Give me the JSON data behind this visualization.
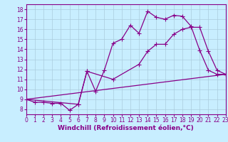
{
  "xlabel": "Windchill (Refroidissement éolien,°C)",
  "ylabel": "",
  "bg_color": "#c8eeff",
  "line_color": "#880088",
  "grid_color": "#aaccdd",
  "xlim": [
    0,
    23
  ],
  "ylim": [
    7.5,
    18.5
  ],
  "xticks": [
    0,
    1,
    2,
    3,
    4,
    5,
    6,
    7,
    8,
    9,
    10,
    11,
    12,
    13,
    14,
    15,
    16,
    17,
    18,
    19,
    20,
    21,
    22,
    23
  ],
  "yticks": [
    8,
    9,
    10,
    11,
    12,
    13,
    14,
    15,
    16,
    17,
    18
  ],
  "line1_x": [
    0,
    1,
    2,
    3,
    4,
    5,
    6,
    7,
    8,
    9,
    10,
    11,
    12,
    13,
    14,
    15,
    16,
    17,
    18,
    19,
    20,
    21,
    22,
    23
  ],
  "line1_y": [
    9.0,
    8.7,
    8.7,
    8.6,
    8.6,
    7.9,
    8.5,
    11.8,
    9.8,
    11.9,
    14.6,
    15.0,
    16.4,
    15.6,
    17.8,
    17.2,
    17.0,
    17.4,
    17.3,
    16.3,
    13.9,
    11.9,
    11.5,
    11.5
  ],
  "line2_x": [
    0,
    6,
    7,
    10,
    13,
    14,
    15,
    16,
    17,
    18,
    19,
    20,
    21,
    22,
    23
  ],
  "line2_y": [
    9.0,
    8.5,
    11.8,
    11.0,
    12.5,
    13.8,
    14.5,
    14.5,
    15.5,
    16.0,
    16.2,
    16.2,
    13.8,
    11.9,
    11.5
  ],
  "line3_x": [
    0,
    23
  ],
  "line3_y": [
    9.0,
    11.5
  ],
  "marker": "+",
  "markersize": 4,
  "linewidth": 0.9,
  "xlabel_fontsize": 6.5,
  "tick_fontsize": 5.5
}
